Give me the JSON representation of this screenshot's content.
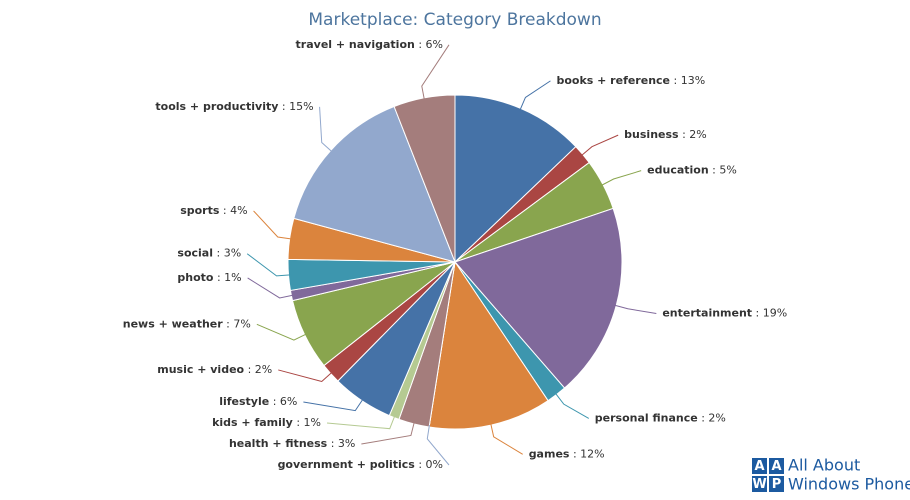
{
  "chart_data": {
    "type": "pie",
    "title": "Marketplace: Category Breakdown",
    "categories": [
      "books + reference",
      "business",
      "education",
      "entertainment",
      "personal finance",
      "games",
      "government + politics",
      "health + fitness",
      "kids + family",
      "lifestyle",
      "music + video",
      "news + weather",
      "photo",
      "social",
      "sports",
      "tools + productivity",
      "travel + navigation"
    ],
    "values": [
      13,
      2,
      5,
      19,
      2,
      12,
      0,
      3,
      1,
      6,
      2,
      7,
      1,
      3,
      4,
      15,
      6
    ],
    "value_labels": [
      "13%",
      "2%",
      "5%",
      "19%",
      "2%",
      "12%",
      "0%",
      "3%",
      "1%",
      "6%",
      "2%",
      "7%",
      "1%",
      "3%",
      "4%",
      "15%",
      "6%"
    ],
    "colors": [
      "#4572a7",
      "#aa4643",
      "#89a54e",
      "#80699b",
      "#3d96ae",
      "#db843d",
      "#92a8cd",
      "#a47d7c",
      "#b5ca92",
      "#4572a7",
      "#aa4643",
      "#89a54e",
      "#80699b",
      "#3d96ae",
      "#db843d",
      "#92a8cd",
      "#a47d7c"
    ]
  },
  "watermark": {
    "logo": [
      "A",
      "A",
      "W",
      "P"
    ],
    "text": [
      "All About",
      "Windows Phone"
    ]
  }
}
